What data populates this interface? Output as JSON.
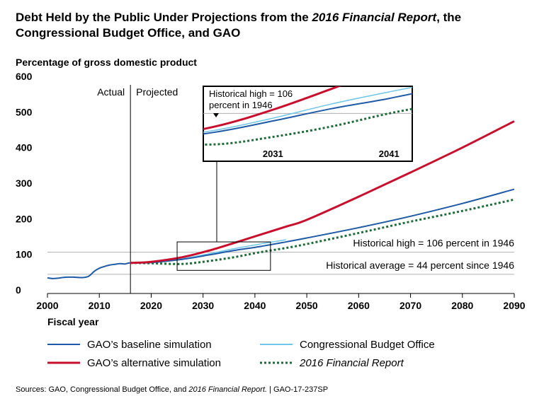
{
  "title": {
    "part1": "Debt Held by the Public Under Projections from the ",
    "italic": "2016 Financial Report",
    "part2": ", the Congressional Budget Office, and GAO"
  },
  "source": {
    "part1": "Sources: GAO, Congressional Budget Office, and ",
    "italic": "2016 Financial Report.",
    "part2": "  |  GAO-17-237SP"
  },
  "colors": {
    "baseline": "#1f5aa6",
    "alternative": "#c8102e",
    "cbo": "#6ec6e8",
    "financial_report": "#1e6b3a",
    "reference": "#b0b0b0"
  },
  "chart_data": {
    "type": "line",
    "title": "Debt Held by the Public Under Projections from the 2016 Financial Report, the Congressional Budget Office, and GAO",
    "ylabel": "Percentage of gross domestic product",
    "xlabel": "Fiscal year",
    "xlim": [
      2000,
      2090
    ],
    "ylim": [
      0,
      600
    ],
    "xticks": [
      2000,
      2010,
      2020,
      2030,
      2040,
      2050,
      2060,
      2070,
      2080,
      2090
    ],
    "yticks": [
      0,
      100,
      200,
      300,
      400,
      500,
      600
    ],
    "divider": {
      "x": 2016,
      "left_label": "Actual",
      "right_label": "Projected"
    },
    "reference_lines": [
      {
        "name": "historical-high",
        "y": 106,
        "label": "Historical high = 106 percent in 1946"
      },
      {
        "name": "historical-average",
        "y": 44,
        "label": "Historical average = 44 percent since 1946"
      }
    ],
    "series": [
      {
        "name": "GAO’s baseline simulation",
        "key": "baseline",
        "style": "solid",
        "x": [
          2000,
          2001,
          2002,
          2003,
          2004,
          2005,
          2006,
          2007,
          2008,
          2009,
          2010,
          2011,
          2012,
          2013,
          2014,
          2015,
          2016,
          2020,
          2026,
          2031,
          2036,
          2041,
          2046,
          2050,
          2060,
          2070,
          2080,
          2090
        ],
        "y": [
          34,
          32,
          33,
          35,
          36,
          36,
          35,
          35,
          39,
          52,
          61,
          66,
          70,
          72,
          74,
          73,
          76,
          77,
          86,
          98,
          111,
          122,
          135,
          146,
          175,
          207,
          243,
          283
        ]
      },
      {
        "name": "GAO’s alternative simulation",
        "key": "alternative",
        "style": "solid",
        "x": [
          2016,
          2020,
          2026,
          2031,
          2036,
          2041,
          2046,
          2050,
          2060,
          2070,
          2080,
          2090
        ],
        "y": [
          76,
          79,
          92,
          110,
          132,
          155,
          178,
          197,
          262,
          330,
          400,
          474
        ]
      },
      {
        "name": "Congressional Budget Office",
        "key": "cbo",
        "style": "solid",
        "x": [
          2016,
          2020,
          2026,
          2031,
          2036,
          2041,
          2046
        ],
        "y": [
          76,
          78,
          88,
          101,
          116,
          129,
          141
        ]
      },
      {
        "name": "2016 Financial Report",
        "key": "financial_report",
        "style": "dotted",
        "x": [
          2016,
          2020,
          2026,
          2031,
          2036,
          2041,
          2046,
          2050,
          2060,
          2070,
          2080,
          2090
        ],
        "y": [
          76,
          75,
          73,
          81,
          92,
          106,
          118,
          129,
          160,
          192,
          222,
          254
        ]
      }
    ],
    "inset": {
      "xlim": [
        2025,
        2043
      ],
      "ylim": [
        55,
        135
      ],
      "xticks": [
        2031,
        2041
      ],
      "annotation": [
        "Historical high = 106",
        "percent in 1946"
      ],
      "reference_y": 106
    },
    "legend": {
      "placement": "bottom",
      "items": [
        {
          "label": "GAO’s baseline simulation",
          "key": "baseline"
        },
        {
          "label": "Congressional Budget Office",
          "key": "cbo"
        },
        {
          "label": "GAO’s alternative simulation",
          "key": "alternative"
        },
        {
          "label": "2016 Financial Report",
          "key": "financial_report"
        }
      ]
    }
  }
}
